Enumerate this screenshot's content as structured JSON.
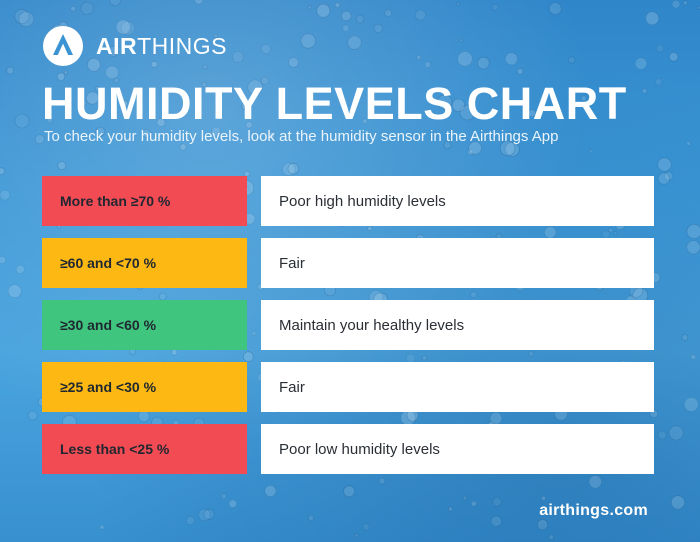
{
  "brand": {
    "name_bold": "AIR",
    "name_light": "THINGS",
    "logo": "airthings-logo-icon"
  },
  "title": "HUMIDITY LEVELS CHART",
  "subtitle": "To check your humidity levels, look at the humidity sensor in the Airthings App",
  "levels": [
    {
      "range": "More than ≥70 %",
      "description": "Poor high humidity levels",
      "color": "#f24b54"
    },
    {
      "range": "≥60 and <70 %",
      "description": "Fair",
      "color": "#fdb813"
    },
    {
      "range": "≥30 and <60 %",
      "description": "Maintain your healthy levels",
      "color": "#3fc57e"
    },
    {
      "range": "≥25 and <30 %",
      "description": "Fair",
      "color": "#fdb813"
    },
    {
      "range": "Less than <25 %",
      "description": "Poor low humidity levels",
      "color": "#f24b54"
    }
  ],
  "footer": {
    "url": "airthings.com"
  },
  "colors": {
    "background": "#3c97d6",
    "text_light": "#ffffff"
  }
}
